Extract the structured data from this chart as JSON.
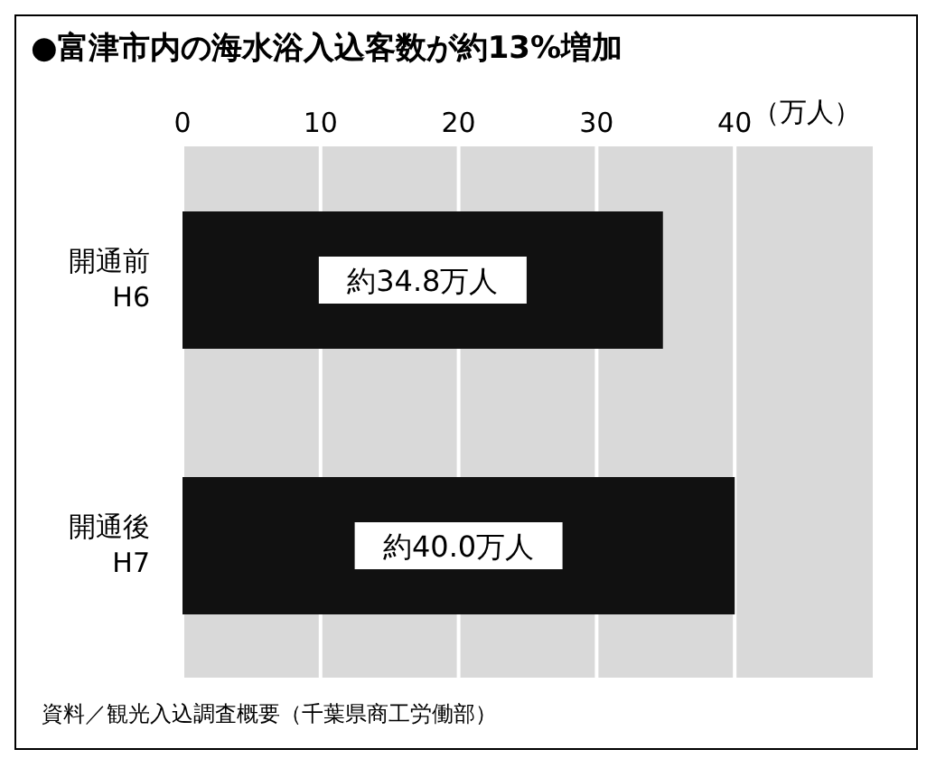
{
  "chart_data": {
    "type": "bar",
    "orientation": "horizontal",
    "title": "●富津市内の海水浴入込客数が約13%増加",
    "xlabel": "（万人）",
    "categories": [
      "開通前\nH6",
      "開通後\nH7"
    ],
    "values": [
      34.8,
      40.0
    ],
    "color": "#111111",
    "value_labels": [
      "約34.8万人",
      "約40.0万人"
    ],
    "xlim": [
      0,
      50
    ],
    "xticks": [
      0,
      10,
      20,
      30,
      40
    ],
    "grid": "x",
    "annotations": [
      "資料／観光入込調査概要（千葉県商工労働部）"
    ]
  }
}
